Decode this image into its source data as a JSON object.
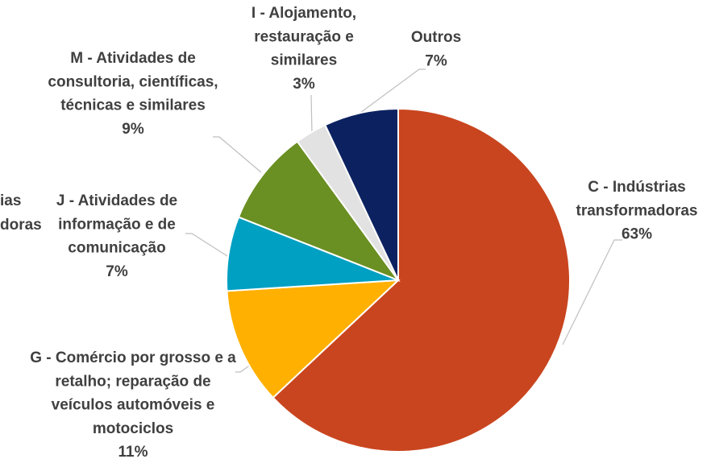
{
  "chart_data": {
    "type": "pie",
    "categories": [
      "C - Indústrias transformadoras",
      "G - Comércio por grosso e a retalho; reparação de veículos automóveis e motociclos",
      "J - Atividades de informação e de comunicação",
      "M - Atividades de consultoria, científicas, técnicas e similares",
      "I - Alojamento, restauração e similares",
      "Outros"
    ],
    "values": [
      63,
      11,
      7,
      9,
      3,
      7
    ],
    "value_labels": [
      "63%",
      "11%",
      "7%",
      "9%",
      "3%",
      "7%"
    ],
    "colors": [
      "#c9451f",
      "#ffb000",
      "#00a0c2",
      "#6a8f22",
      "#e2e2e2",
      "#0c2260"
    ],
    "annotations": [
      "ias",
      "doras"
    ]
  }
}
